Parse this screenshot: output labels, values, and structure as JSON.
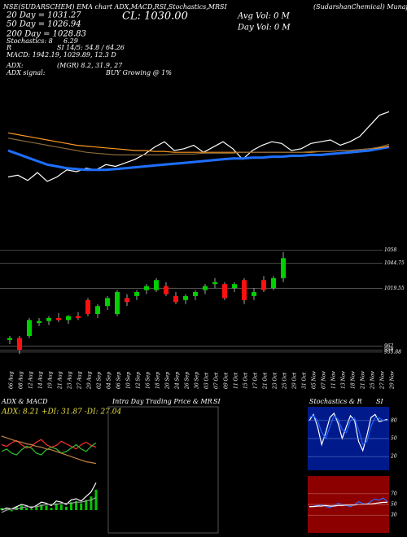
{
  "header": {
    "site": "(SudarshanChemical) MunafaSutra.com",
    "title": "NSE(SUDARSCHEM) EMA chart ADX,MACD,RSI,Stochastics,MRSI",
    "close": "CL: 1030.00",
    "ema20": "20 Day = 1031.27",
    "ema50": "50 Day = 1026.94",
    "ema200": "200 Day = 1028.83",
    "stoch": "Stochastics: 8",
    "stoch2": "6.29",
    "rsi_r": "R",
    "rsi": "SI 14/5: 54.8 / 64.26",
    "macd": "MACD: 1942.19, 1029.89, 12.3 D",
    "avgvol": "Avg Vol: 0 M",
    "dayvol": "Day Vol: 0 M",
    "adx": "ADX:",
    "adxv": "(MGR) 8.2, 31.9, 27",
    "adxsig": "ADX signal:",
    "adxsigv": "BUY Growing @ 1%"
  },
  "intraday": {
    "title": "Intra Day Trading Price & MR",
    "subtitle": "SI"
  },
  "chart_data": [
    {
      "type": "line",
      "ylim": [
        960,
        1080
      ],
      "series": [
        {
          "color": "#ffffff",
          "values": [
            990,
            992,
            986,
            995,
            985,
            990,
            998,
            996,
            1000,
            998,
            1004,
            1002,
            1006,
            1010,
            1016,
            1024,
            1030,
            1020,
            1022,
            1026,
            1018,
            1024,
            1030,
            1022,
            1010,
            1020,
            1026,
            1030,
            1028,
            1020,
            1022,
            1028,
            1030,
            1032,
            1026,
            1030,
            1036,
            1048,
            1060,
            1064
          ]
        },
        {
          "color": "#1e6fff",
          "values": [
            1020,
            1016,
            1012,
            1008,
            1004,
            1002,
            1000,
            999,
            998,
            998,
            998,
            999,
            1000,
            1001,
            1002,
            1003,
            1004,
            1005,
            1006,
            1007,
            1008,
            1009,
            1010,
            1011,
            1011,
            1012,
            1012,
            1013,
            1013,
            1014,
            1014,
            1015,
            1015,
            1016,
            1017,
            1018,
            1019,
            1020,
            1022,
            1024
          ]
        },
        {
          "color": "#ff9a1e",
          "values": [
            1040,
            1038,
            1036,
            1034,
            1032,
            1030,
            1028,
            1026,
            1025,
            1024,
            1023,
            1022,
            1021,
            1020,
            1020,
            1019,
            1019,
            1018,
            1018,
            1018,
            1018,
            1018,
            1018,
            1018,
            1018,
            1018,
            1018,
            1018,
            1018,
            1018,
            1018,
            1018,
            1019,
            1019,
            1020,
            1020,
            1021,
            1022,
            1023,
            1025
          ]
        },
        {
          "color": "#8a6a3a",
          "values": [
            1034,
            1032,
            1030,
            1028,
            1026,
            1024,
            1022,
            1020,
            1018,
            1017,
            1016,
            1015,
            1015,
            1015,
            1015,
            1015,
            1015,
            1016,
            1016,
            1016,
            1017,
            1017,
            1017,
            1017,
            1018,
            1018,
            1018,
            1018,
            1018,
            1018,
            1018,
            1019,
            1019,
            1019,
            1020,
            1020,
            1021,
            1022,
            1024,
            1027
          ]
        }
      ]
    },
    {
      "type": "candlestick",
      "ylim": [
        950,
        1060
      ],
      "yticks": [
        1058,
        {
          "value": 1044.75,
          "label": "1044.75"
        },
        {
          "value": 1019.55,
          "label": "1019.55"
        },
        962,
        958,
        {
          "value": 955.88,
          "label": "955.88"
        }
      ],
      "categories": [
        "06 Aug",
        "08 Aug",
        "12 Aug",
        "14 Aug",
        "19 Aug",
        "21 Aug",
        "23 Aug",
        "27 Aug",
        "29 Aug",
        "02 Sep",
        "04 Sep",
        "06 Sep",
        "10 Sep",
        "12 Sep",
        "16 Sep",
        "18 Sep",
        "20 Sep",
        "24 Sep",
        "26 Sep",
        "30 Sep",
        "03 Oct",
        "07 Oct",
        "09 Oct",
        "11 Oct",
        "15 Oct",
        "17 Oct",
        "21 Oct",
        "23 Oct",
        "25 Oct",
        "29 Oct",
        "31 Oct",
        "05 Nov",
        "07 Nov",
        "11 Nov",
        "13 Nov",
        "18 Nov",
        "21 Nov",
        "25 Nov",
        "27 Nov",
        "29 Nov"
      ],
      "open": [
        968,
        970,
        972,
        985,
        987,
        990,
        988,
        992,
        1008,
        994,
        1002,
        994,
        1010,
        1012,
        1018,
        1018,
        1022,
        1012,
        1008,
        1012,
        1018,
        1024,
        1024,
        1020,
        1028,
        1012,
        1028,
        1020,
        1030,
        null,
        null,
        null,
        null,
        null,
        null,
        null,
        null,
        null,
        null,
        null
      ],
      "high": [
        972,
        972,
        990,
        990,
        992,
        995,
        993,
        996,
        1010,
        1004,
        1012,
        1018,
        1014,
        1018,
        1024,
        1030,
        1026,
        1016,
        1014,
        1018,
        1024,
        1030,
        1026,
        1026,
        1030,
        1020,
        1032,
        1032,
        1056,
        null,
        null,
        null,
        null,
        null,
        null,
        null,
        null,
        null,
        null,
        null
      ],
      "low": [
        964,
        954,
        970,
        982,
        983,
        986,
        984,
        988,
        992,
        990,
        998,
        992,
        1002,
        1008,
        1014,
        1016,
        1012,
        1004,
        1004,
        1008,
        1014,
        1020,
        1008,
        1016,
        1004,
        1008,
        1016,
        1018,
        1026,
        null,
        null,
        null,
        null,
        null,
        null,
        null,
        null,
        null,
        null,
        null
      ],
      "close": [
        970,
        958,
        988,
        987,
        990,
        988,
        992,
        990,
        994,
        1002,
        1010,
        1016,
        1006,
        1016,
        1022,
        1028,
        1014,
        1006,
        1012,
        1016,
        1022,
        1026,
        1010,
        1024,
        1008,
        1016,
        1018,
        1030,
        1050,
        null,
        null,
        null,
        null,
        null,
        null,
        null,
        null,
        null,
        null,
        null
      ]
    },
    {
      "type": "line",
      "title": "ADX & MACD",
      "subtitle": "ADX: 8.21 +DI: 31.87 -DI: 27.04",
      "ylim": [
        0,
        60
      ],
      "series": [
        {
          "color": "#ff3030",
          "values": [
            30,
            28,
            32,
            35,
            30,
            26,
            28,
            33,
            36,
            30,
            27,
            29,
            34,
            31,
            28,
            25,
            30,
            33,
            29,
            27
          ]
        },
        {
          "color": "#30c030",
          "values": [
            22,
            25,
            20,
            18,
            24,
            28,
            26,
            20,
            18,
            24,
            27,
            25,
            20,
            22,
            26,
            30,
            25,
            22,
            28,
            32
          ]
        },
        {
          "color": "#c08040",
          "values": [
            40,
            38,
            36,
            34,
            33,
            31,
            30,
            28,
            27,
            25,
            24,
            22,
            20,
            18,
            16,
            14,
            12,
            10,
            9,
            8
          ]
        }
      ]
    },
    {
      "type": "bar",
      "ylim": [
        -20,
        30
      ],
      "values": [
        2,
        1,
        -1,
        3,
        4,
        2,
        1,
        3,
        5,
        4,
        2,
        6,
        5,
        3,
        7,
        8,
        6,
        9,
        12,
        18
      ],
      "color": "#00c800",
      "series": [
        {
          "color": "#ffffff",
          "values": [
            0,
            2,
            1,
            3,
            5,
            4,
            2,
            4,
            7,
            6,
            4,
            8,
            7,
            5,
            9,
            10,
            8,
            12,
            16,
            24
          ]
        },
        {
          "color": "#a0a0a0",
          "values": [
            -2,
            0,
            1,
            1,
            2,
            3,
            3,
            3,
            4,
            5,
            5,
            5,
            6,
            6,
            6,
            7,
            7,
            8,
            9,
            11
          ]
        }
      ]
    },
    {
      "type": "line",
      "title": "Stochastics & R",
      "subtitle": "SI",
      "ylim": [
        0,
        100
      ],
      "yticks": [
        20,
        50,
        80
      ],
      "series": [
        {
          "color": "#ffffff",
          "values": [
            80,
            90,
            70,
            40,
            60,
            85,
            92,
            75,
            50,
            70,
            88,
            80,
            45,
            30,
            55,
            85,
            90,
            78,
            80,
            82
          ]
        },
        {
          "color": "#2060ff",
          "values": [
            85,
            88,
            80,
            60,
            50,
            70,
            88,
            82,
            65,
            60,
            80,
            84,
            65,
            40,
            45,
            70,
            85,
            84,
            80,
            80
          ]
        }
      ]
    },
    {
      "type": "line",
      "ylim": [
        0,
        100
      ],
      "yticks": [
        30,
        50,
        70
      ],
      "series": [
        {
          "color": "#2a6aff",
          "values": [
            45,
            47,
            48,
            50,
            46,
            44,
            48,
            52,
            50,
            48,
            46,
            50,
            55,
            52,
            50,
            56,
            60,
            58,
            62,
            55
          ]
        },
        {
          "color": "#ffffff",
          "values": [
            46,
            46,
            47,
            47,
            48,
            47,
            47,
            48,
            48,
            49,
            49,
            49,
            50,
            50,
            51,
            51,
            52,
            53,
            54,
            54
          ]
        }
      ]
    }
  ]
}
